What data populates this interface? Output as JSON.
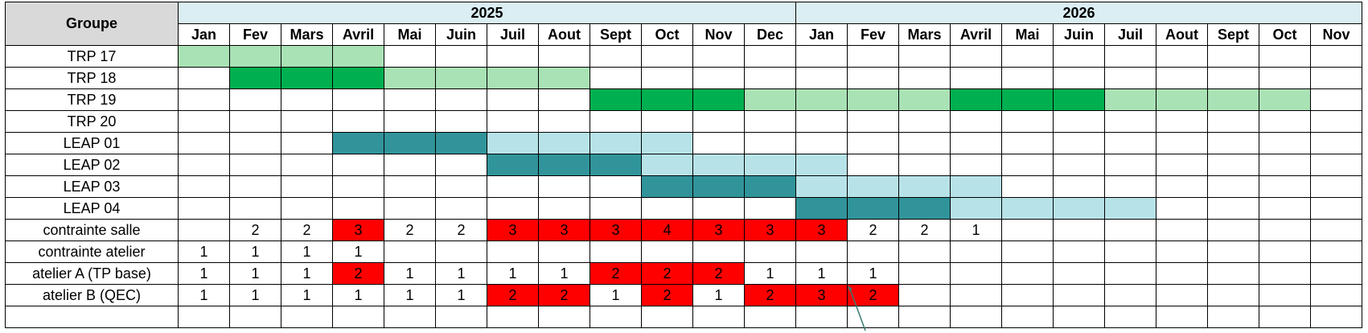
{
  "header": {
    "group_label": "Groupe",
    "years": [
      {
        "label": "2025",
        "span": 12
      },
      {
        "label": "2026",
        "span": 11
      }
    ],
    "months": [
      "Jan",
      "Fev",
      "Mars",
      "Avril",
      "Mai",
      "Juin",
      "Juil",
      "Aout",
      "Sept",
      "Oct",
      "Nov",
      "Dec",
      "Jan",
      "Fev",
      "Mars",
      "Avril",
      "Mai",
      "Juin",
      "Juil",
      "Aout",
      "Sept",
      "Oct",
      "Nov"
    ]
  },
  "colors": {
    "green_light": "#a9e2b5",
    "green_dark": "#00b050",
    "teal_dark": "#31949a",
    "teal_light": "#b7e3e8",
    "red": "#ff0000",
    "header_year_bg": "#daeef3",
    "corner_bg": "#d9d9d9"
  },
  "rows": [
    {
      "label": "TRP 17",
      "cells": [
        "GL",
        "GL",
        "GL",
        "GL",
        "",
        "",
        "",
        "",
        "",
        "",
        "",
        "",
        "",
        "",
        "",
        "",
        "",
        "",
        "",
        "",
        "",
        "",
        ""
      ]
    },
    {
      "label": "TRP 18",
      "cells": [
        "",
        "GD",
        "GD",
        "GD",
        "GL",
        "GL",
        "GL",
        "GL",
        "",
        "",
        "",
        "",
        "",
        "",
        "",
        "",
        "",
        "",
        "",
        "",
        "",
        "",
        ""
      ]
    },
    {
      "label": "TRP 19",
      "cells": [
        "",
        "",
        "",
        "",
        "",
        "",
        "",
        "",
        "GD",
        "GD",
        "GD",
        "GL",
        "GL",
        "GL",
        "GL",
        "GD",
        "GD",
        "GD",
        "GL",
        "GL",
        "GL",
        "GL",
        ""
      ]
    },
    {
      "label": "TRP 20",
      "cells": [
        "",
        "",
        "",
        "",
        "",
        "",
        "",
        "",
        "",
        "",
        "",
        "",
        "",
        "",
        "",
        "",
        "",
        "",
        "",
        "",
        "",
        "",
        ""
      ]
    },
    {
      "label": "LEAP 01",
      "cells": [
        "",
        "",
        "",
        "TD",
        "TD",
        "TD",
        "TL",
        "TL",
        "TL",
        "TL",
        "",
        "",
        "",
        "",
        "",
        "",
        "",
        "",
        "",
        "",
        "",
        "",
        ""
      ]
    },
    {
      "label": "LEAP 02",
      "cells": [
        "",
        "",
        "",
        "",
        "",
        "",
        "TD",
        "TD",
        "TD",
        "TL",
        "TL",
        "TL",
        "TL",
        "",
        "",
        "",
        "",
        "",
        "",
        "",
        "",
        "",
        ""
      ]
    },
    {
      "label": "LEAP 03",
      "cells": [
        "",
        "",
        "",
        "",
        "",
        "",
        "",
        "",
        "",
        "TD",
        "TD",
        "TD",
        "TL",
        "TL",
        "TL",
        "TL",
        "",
        "",
        "",
        "",
        "",
        "",
        ""
      ]
    },
    {
      "label": "LEAP 04",
      "cells": [
        "",
        "",
        "",
        "",
        "",
        "",
        "",
        "",
        "",
        "",
        "",
        "",
        "TD",
        "TD",
        "TD",
        "TL",
        "TL",
        "TL",
        "TL",
        "",
        "",
        "",
        ""
      ]
    },
    {
      "label": "contrainte salle",
      "values": [
        "",
        "2",
        "2",
        "3",
        "2",
        "2",
        "3",
        "3",
        "3",
        "4",
        "3",
        "3",
        "3",
        "2",
        "2",
        "1",
        "",
        "",
        "",
        "",
        "",
        "",
        ""
      ],
      "red": [
        false,
        false,
        false,
        true,
        false,
        false,
        true,
        true,
        true,
        true,
        true,
        true,
        true,
        false,
        false,
        false,
        false,
        false,
        false,
        false,
        false,
        false,
        false
      ]
    },
    {
      "label": "contrainte atelier",
      "values": [
        "1",
        "1",
        "1",
        "1",
        "",
        "",
        "",
        "",
        "",
        "",
        "",
        "",
        "",
        "",
        "",
        "",
        "",
        "",
        "",
        "",
        "",
        "",
        ""
      ],
      "red": [
        false,
        false,
        false,
        false,
        false,
        false,
        false,
        false,
        false,
        false,
        false,
        false,
        false,
        false,
        false,
        false,
        false,
        false,
        false,
        false,
        false,
        false,
        false
      ]
    },
    {
      "label": "atelier A (TP base)",
      "values": [
        "1",
        "1",
        "1",
        "2",
        "1",
        "1",
        "1",
        "1",
        "2",
        "2",
        "2",
        "1",
        "1",
        "1",
        "",
        "",
        "",
        "",
        "",
        "",
        "",
        "",
        ""
      ],
      "red": [
        false,
        false,
        false,
        true,
        false,
        false,
        false,
        false,
        true,
        true,
        true,
        false,
        false,
        false,
        false,
        false,
        false,
        false,
        false,
        false,
        false,
        false,
        false
      ]
    },
    {
      "label": "atelier B (QEC)",
      "values": [
        "1",
        "1",
        "1",
        "1",
        "1",
        "1",
        "2",
        "2",
        "1",
        "2",
        "1",
        "2",
        "3",
        "2",
        "",
        "",
        "",
        "",
        "",
        "",
        "",
        "",
        ""
      ],
      "red": [
        false,
        false,
        false,
        false,
        false,
        false,
        true,
        true,
        false,
        true,
        false,
        true,
        true,
        true,
        false,
        false,
        false,
        false,
        false,
        false,
        false,
        false,
        false
      ]
    },
    {
      "label": "",
      "values": [
        "",
        "",
        "",
        "",
        "",
        "",
        "",
        "",
        "",
        "",
        "",
        "",
        "",
        "",
        "",
        "",
        "",
        "",
        "",
        "",
        "",
        "",
        ""
      ],
      "red": [
        false,
        false,
        false,
        false,
        false,
        false,
        false,
        false,
        false,
        false,
        false,
        false,
        false,
        false,
        false,
        false,
        false,
        false,
        false,
        false,
        false,
        false,
        false
      ]
    }
  ]
}
